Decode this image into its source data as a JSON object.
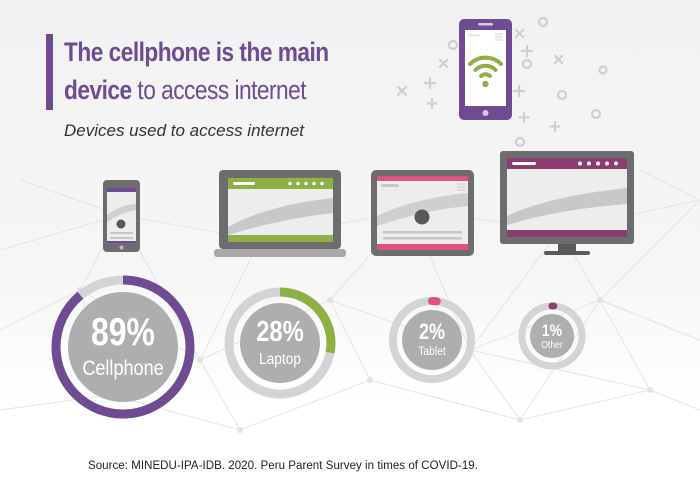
{
  "title": {
    "bold_1": "The cellphone is the main",
    "bold_2": "device",
    "regular_2": " to access internet"
  },
  "subtitle": "Devices used to access internet",
  "source": "Source: MINEDU-IPA-IDB. 2020. Peru Parent Survey in times of COVID-19.",
  "colors": {
    "cellphone": "#6e4b92",
    "laptop": "#8fb045",
    "tablet": "#e0527e",
    "other": "#8a3d6e",
    "ring_track": "#d4d4d6",
    "center_fill": "#aeaeb0",
    "device_gray": "#6d6d6f"
  },
  "icons": [
    "smartphone-wifi-icon",
    "cellphone-icon",
    "laptop-icon",
    "tablet-icon",
    "monitor-icon"
  ],
  "chart_data": {
    "type": "pie",
    "title": "Devices used to access internet",
    "categories": [
      "Cellphone",
      "Laptop",
      "Tablet",
      "Other"
    ],
    "values": [
      89,
      28,
      2,
      1
    ],
    "unit": "%",
    "value_labels": [
      "89%",
      "28%",
      "2%",
      "1%"
    ]
  }
}
